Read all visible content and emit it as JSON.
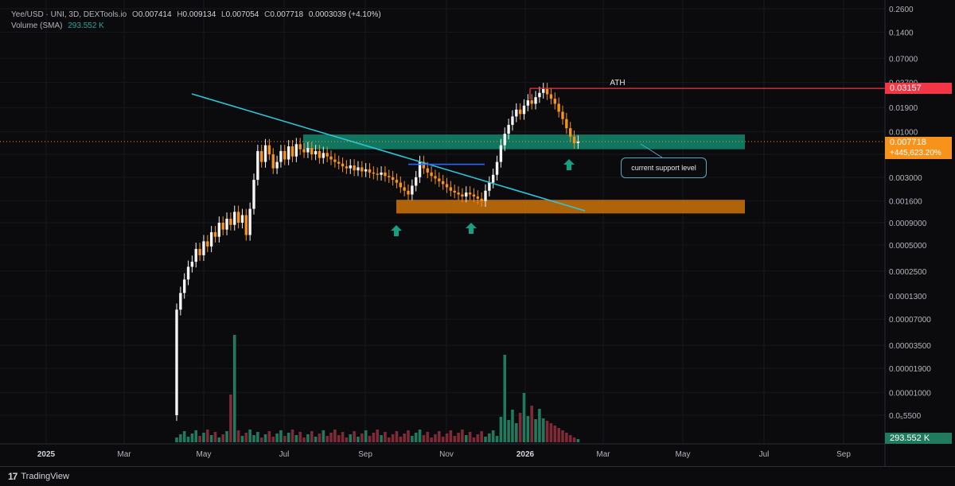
{
  "header": {
    "symbol": "Yee/USD · UNI, 3D, DEXTools.io",
    "open_label": "O",
    "open": "0.007414",
    "high_label": "H",
    "high": "0.009134",
    "low_label": "L",
    "low": "0.007054",
    "close_label": "C",
    "close": "0.007718",
    "change": "0.0003039 (+4.10%)",
    "volume_label": "Volume (SMA)",
    "volume_value": "293.552 K"
  },
  "price_tags": {
    "ath": "0.03157",
    "last": "0.007718",
    "last_change": "+445,623.20%",
    "volume": "293.552 K"
  },
  "annotations": {
    "ath_label": "ATH",
    "support_note": "current support level"
  },
  "footer": {
    "brand": "TradingView"
  },
  "colors": {
    "up": "#f5f5f5",
    "down": "#f7931a",
    "trend": "#2ec4d6",
    "support_zone": "#138a6e",
    "lower_zone": "#b8690d",
    "ath_line": "#f23645",
    "arrow": "#15a083",
    "vol_up": "#1f7a5e",
    "vol_down": "#7f2a36"
  },
  "chart_data": {
    "type": "candlestick",
    "title": "Yee/USD · UNI, 3D, DEXTools.io",
    "y_scale": "log",
    "y_ticks": [
      "0.2600",
      "0.1400",
      "0.07000",
      "0.03700",
      "0.01900",
      "0.01000",
      "0.005500",
      "0.003000",
      "0.001600",
      "0.0009000",
      "0.0005000",
      "0.0002500",
      "0.0001300",
      "0.00007000",
      "0.00003500",
      "0.00001900",
      "0.00001000",
      "0.0₅5500"
    ],
    "x_ticks": [
      "2025",
      "Mar",
      "May",
      "Jul",
      "Sep",
      "Nov",
      "2026",
      "Mar",
      "May",
      "Jul",
      "Sep"
    ],
    "x_tick_bold": [
      "2025",
      "2026"
    ],
    "candles_close": [
      9e-05,
      0.00014,
      0.0002,
      0.00028,
      0.00032,
      0.00045,
      0.00038,
      0.00055,
      0.00048,
      0.0007,
      0.00062,
      0.0009,
      0.00075,
      0.001,
      0.00085,
      0.0012,
      0.0009,
      0.0011,
      0.00065,
      0.0013,
      0.0028,
      0.006,
      0.0045,
      0.007,
      0.0055,
      0.0038,
      0.0045,
      0.006,
      0.0048,
      0.0068,
      0.0052,
      0.0072,
      0.0063,
      0.0058,
      0.0065,
      0.0055,
      0.006,
      0.005,
      0.0057,
      0.0052,
      0.0048,
      0.0045,
      0.0043,
      0.004,
      0.0038,
      0.0041,
      0.0036,
      0.0039,
      0.0035,
      0.0037,
      0.0034,
      0.0033,
      0.0032,
      0.0034,
      0.0031,
      0.003,
      0.0028,
      0.0026,
      0.0023,
      0.0021,
      0.0019,
      0.0024,
      0.003,
      0.0045,
      0.0038,
      0.0034,
      0.0031,
      0.0029,
      0.0027,
      0.0025,
      0.0023,
      0.0021,
      0.002,
      0.0019,
      0.0018,
      0.002,
      0.0019,
      0.0018,
      0.0017,
      0.0016,
      0.0021,
      0.0026,
      0.0032,
      0.0045,
      0.007,
      0.0095,
      0.012,
      0.015,
      0.018,
      0.016,
      0.02,
      0.023,
      0.021,
      0.025,
      0.028,
      0.031,
      0.027,
      0.024,
      0.021,
      0.017,
      0.014,
      0.011,
      0.0088,
      0.0074,
      0.0077
    ],
    "lines": {
      "ath": 0.03157,
      "trend_from": {
        "x": "2025-04-20",
        "y": 0.033
      },
      "trend_to": {
        "x": "2026-01-20",
        "y": 0.00155
      },
      "support_zone": [
        0.0063,
        0.0093
      ],
      "lower_zone": [
        0.00115,
        0.00165
      ],
      "breakout_level": 0.0045
    },
    "volume_unit": "K",
    "legend": "top-left"
  }
}
